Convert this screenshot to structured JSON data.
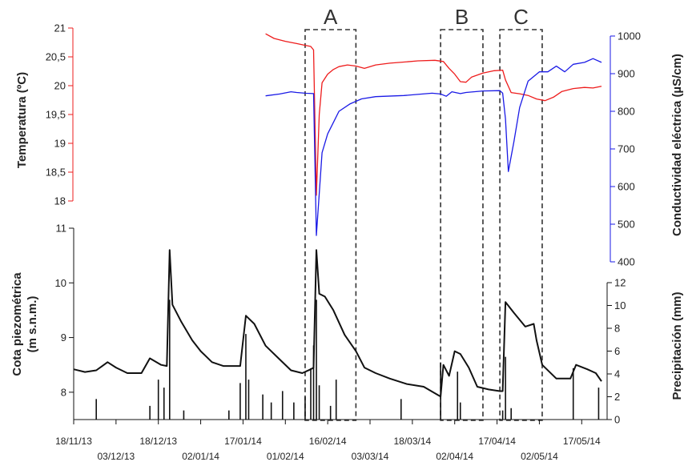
{
  "chart_data": {
    "type": "line",
    "colors": {
      "temperature": "#ee1c1c",
      "conductivity": "#1a1ae6",
      "piezometric": "#111111",
      "precipitation": "#111111",
      "boxes": "#333333"
    },
    "axes": {
      "temperature": {
        "label": "Temperatura (ºC)",
        "range": [
          18,
          21
        ],
        "ticks": [
          "18",
          "18,5",
          "19",
          "19,5",
          "20",
          "20,5",
          "21"
        ],
        "color": "#ee1c1c"
      },
      "conductivity": {
        "label": "Conductividad eléctrica (µS/cm)",
        "range": [
          400,
          1000
        ],
        "ticks": [
          "400",
          "500",
          "600",
          "700",
          "800",
          "900",
          "1000"
        ],
        "color": "#1a1ae6"
      },
      "piezometric": {
        "label_line1": "Cota piezométrica",
        "label_line2": "(m s.n.m.)",
        "range": [
          7.5,
          11
        ],
        "ticks": [
          "8",
          "9",
          "10",
          "11"
        ]
      },
      "precipitation": {
        "label": "Precipitación (mm)",
        "range": [
          0,
          12
        ],
        "ticks": [
          "0",
          "2",
          "4",
          "6",
          "8",
          "10",
          "12"
        ]
      },
      "x": {
        "range": [
          "2013-11-18",
          "2014-05-26"
        ],
        "ticks": [
          {
            "label": "18/11/13",
            "date": "2013-11-18",
            "row": 0
          },
          {
            "label": "03/12/13",
            "date": "2013-12-03",
            "row": 1
          },
          {
            "label": "18/12/13",
            "date": "2013-12-18",
            "row": 0
          },
          {
            "label": "02/01/14",
            "date": "2014-01-02",
            "row": 1
          },
          {
            "label": "17/01/14",
            "date": "2014-01-17",
            "row": 0
          },
          {
            "label": "01/02/14",
            "date": "2014-02-01",
            "row": 1
          },
          {
            "label": "16/02/14",
            "date": "2014-02-16",
            "row": 0
          },
          {
            "label": "03/03/14",
            "date": "2014-03-03",
            "row": 1
          },
          {
            "label": "18/03/14",
            "date": "2014-03-18",
            "row": 0
          },
          {
            "label": "02/04/14",
            "date": "2014-04-02",
            "row": 1
          },
          {
            "label": "17/04/14",
            "date": "2014-04-17",
            "row": 0
          },
          {
            "label": "02/05/14",
            "date": "2014-05-02",
            "row": 1
          },
          {
            "label": "17/05/14",
            "date": "2014-05-17",
            "row": 0
          }
        ]
      }
    },
    "boxes": [
      {
        "label": "A",
        "start": "2014-02-08",
        "end": "2014-02-26"
      },
      {
        "label": "B",
        "start": "2014-03-28",
        "end": "2014-04-12"
      },
      {
        "label": "C",
        "start": "2014-04-18",
        "end": "2014-05-03"
      }
    ],
    "series": [
      {
        "key": "temperature",
        "axis": "temperature",
        "points": [
          [
            "2014-01-25",
            20.9
          ],
          [
            "2014-01-28",
            20.82
          ],
          [
            "2014-02-01",
            20.77
          ],
          [
            "2014-02-05",
            20.73
          ],
          [
            "2014-02-08",
            20.7
          ],
          [
            "2014-02-10",
            20.68
          ],
          [
            "2014-02-11",
            20.62
          ],
          [
            "2014-02-12",
            18.1
          ],
          [
            "2014-02-13",
            19.5
          ],
          [
            "2014-02-14",
            20.05
          ],
          [
            "2014-02-16",
            20.2
          ],
          [
            "2014-02-18",
            20.28
          ],
          [
            "2014-02-20",
            20.33
          ],
          [
            "2014-02-23",
            20.36
          ],
          [
            "2014-02-26",
            20.34
          ],
          [
            "2014-03-01",
            20.3
          ],
          [
            "2014-03-05",
            20.36
          ],
          [
            "2014-03-10",
            20.39
          ],
          [
            "2014-03-15",
            20.41
          ],
          [
            "2014-03-20",
            20.43
          ],
          [
            "2014-03-26",
            20.44
          ],
          [
            "2014-03-29",
            20.42
          ],
          [
            "2014-03-31",
            20.3
          ],
          [
            "2014-04-02",
            20.2
          ],
          [
            "2014-04-04",
            20.07
          ],
          [
            "2014-04-06",
            20.06
          ],
          [
            "2014-04-08",
            20.15
          ],
          [
            "2014-04-12",
            20.22
          ],
          [
            "2014-04-16",
            20.26
          ],
          [
            "2014-04-19",
            20.27
          ],
          [
            "2014-04-20",
            20.1
          ],
          [
            "2014-04-22",
            19.88
          ],
          [
            "2014-04-25",
            19.86
          ],
          [
            "2014-04-28",
            19.83
          ],
          [
            "2014-05-01",
            19.77
          ],
          [
            "2014-05-04",
            19.74
          ],
          [
            "2014-05-07",
            19.8
          ],
          [
            "2014-05-10",
            19.9
          ],
          [
            "2014-05-14",
            19.95
          ],
          [
            "2014-05-18",
            19.97
          ],
          [
            "2014-05-21",
            19.96
          ],
          [
            "2014-05-24",
            19.99
          ]
        ]
      },
      {
        "key": "conductivity",
        "axis": "conductivity",
        "points": [
          [
            "2014-01-25",
            841
          ],
          [
            "2014-01-30",
            846
          ],
          [
            "2014-02-03",
            852
          ],
          [
            "2014-02-05",
            850
          ],
          [
            "2014-02-08",
            848
          ],
          [
            "2014-02-11",
            847
          ],
          [
            "2014-02-12",
            470
          ],
          [
            "2014-02-14",
            690
          ],
          [
            "2014-02-16",
            740
          ],
          [
            "2014-02-18",
            770
          ],
          [
            "2014-02-20",
            800
          ],
          [
            "2014-02-24",
            820
          ],
          [
            "2014-02-28",
            833
          ],
          [
            "2014-03-05",
            839
          ],
          [
            "2014-03-15",
            842
          ],
          [
            "2014-03-25",
            848
          ],
          [
            "2014-03-28",
            846
          ],
          [
            "2014-03-30",
            840
          ],
          [
            "2014-04-01",
            852
          ],
          [
            "2014-04-04",
            847
          ],
          [
            "2014-04-06",
            850
          ],
          [
            "2014-04-12",
            854
          ],
          [
            "2014-04-18",
            855
          ],
          [
            "2014-04-19",
            848
          ],
          [
            "2014-04-20",
            780
          ],
          [
            "2014-04-21",
            640
          ],
          [
            "2014-04-23",
            720
          ],
          [
            "2014-04-25",
            810
          ],
          [
            "2014-04-28",
            880
          ],
          [
            "2014-05-02",
            905
          ],
          [
            "2014-05-05",
            905
          ],
          [
            "2014-05-08",
            920
          ],
          [
            "2014-05-11",
            905
          ],
          [
            "2014-05-14",
            925
          ],
          [
            "2014-05-18",
            930
          ],
          [
            "2014-05-21",
            940
          ],
          [
            "2014-05-24",
            930
          ]
        ]
      },
      {
        "key": "piezometric",
        "axis": "piezometric",
        "points": [
          [
            "2013-11-18",
            8.42
          ],
          [
            "2013-11-22",
            8.37
          ],
          [
            "2013-11-26",
            8.4
          ],
          [
            "2013-11-30",
            8.55
          ],
          [
            "2013-12-03",
            8.45
          ],
          [
            "2013-12-07",
            8.35
          ],
          [
            "2013-12-12",
            8.35
          ],
          [
            "2013-12-15",
            8.62
          ],
          [
            "2013-12-19",
            8.5
          ],
          [
            "2013-12-21",
            8.48
          ],
          [
            "2013-12-22",
            10.6
          ],
          [
            "2013-12-23",
            9.6
          ],
          [
            "2013-12-26",
            9.3
          ],
          [
            "2013-12-30",
            8.95
          ],
          [
            "2014-01-02",
            8.75
          ],
          [
            "2014-01-06",
            8.55
          ],
          [
            "2014-01-10",
            8.48
          ],
          [
            "2014-01-16",
            8.48
          ],
          [
            "2014-01-18",
            9.4
          ],
          [
            "2014-01-21",
            9.25
          ],
          [
            "2014-01-25",
            8.85
          ],
          [
            "2014-01-30",
            8.6
          ],
          [
            "2014-02-03",
            8.4
          ],
          [
            "2014-02-07",
            8.35
          ],
          [
            "2014-02-10",
            8.42
          ],
          [
            "2014-02-11",
            8.45
          ],
          [
            "2014-02-12",
            10.6
          ],
          [
            "2014-02-13",
            9.8
          ],
          [
            "2014-02-15",
            9.75
          ],
          [
            "2014-02-18",
            9.5
          ],
          [
            "2014-02-22",
            9.05
          ],
          [
            "2014-02-26",
            8.75
          ],
          [
            "2014-03-01",
            8.45
          ],
          [
            "2014-03-05",
            8.35
          ],
          [
            "2014-03-10",
            8.25
          ],
          [
            "2014-03-16",
            8.15
          ],
          [
            "2014-03-22",
            8.1
          ],
          [
            "2014-03-27",
            7.95
          ],
          [
            "2014-03-28",
            7.92
          ],
          [
            "2014-03-29",
            8.5
          ],
          [
            "2014-03-31",
            8.3
          ],
          [
            "2014-04-02",
            8.75
          ],
          [
            "2014-04-04",
            8.7
          ],
          [
            "2014-04-07",
            8.45
          ],
          [
            "2014-04-10",
            8.1
          ],
          [
            "2014-04-14",
            8.05
          ],
          [
            "2014-04-18",
            8.02
          ],
          [
            "2014-04-19",
            8.02
          ],
          [
            "2014-04-20",
            9.65
          ],
          [
            "2014-04-23",
            9.45
          ],
          [
            "2014-04-27",
            9.2
          ],
          [
            "2014-04-30",
            9.25
          ],
          [
            "2014-05-01",
            8.95
          ],
          [
            "2014-05-03",
            8.5
          ],
          [
            "2014-05-08",
            8.25
          ],
          [
            "2014-05-13",
            8.25
          ],
          [
            "2014-05-15",
            8.5
          ],
          [
            "2014-05-19",
            8.42
          ],
          [
            "2014-05-22",
            8.35
          ],
          [
            "2014-05-24",
            8.2
          ]
        ]
      },
      {
        "key": "precipitation",
        "axis": "precipitation",
        "type": "bar",
        "points": [
          [
            "2013-11-26",
            1.8
          ],
          [
            "2013-12-15",
            1.2
          ],
          [
            "2013-12-18",
            3.5
          ],
          [
            "2013-12-20",
            2.8
          ],
          [
            "2013-12-22",
            10.5
          ],
          [
            "2013-12-27",
            0.8
          ],
          [
            "2014-01-12",
            0.8
          ],
          [
            "2014-01-16",
            3.2
          ],
          [
            "2014-01-18",
            7.5
          ],
          [
            "2014-01-19",
            3.5
          ],
          [
            "2014-01-24",
            2.2
          ],
          [
            "2014-01-27",
            1.5
          ],
          [
            "2014-01-31",
            2.5
          ],
          [
            "2014-02-04",
            1.5
          ],
          [
            "2014-02-08",
            2.0
          ],
          [
            "2014-02-10",
            4.5
          ],
          [
            "2014-02-11",
            6.5
          ],
          [
            "2014-02-12",
            10.5
          ],
          [
            "2014-02-13",
            3.0
          ],
          [
            "2014-02-17",
            1.2
          ],
          [
            "2014-02-19",
            3.5
          ],
          [
            "2014-03-14",
            1.8
          ],
          [
            "2014-03-28",
            5.0
          ],
          [
            "2014-04-03",
            4.2
          ],
          [
            "2014-04-04",
            1.5
          ],
          [
            "2014-04-19",
            0.8
          ],
          [
            "2014-04-20",
            5.5
          ],
          [
            "2014-04-22",
            1.0
          ],
          [
            "2014-05-14",
            4.5
          ],
          [
            "2014-05-23",
            2.8
          ]
        ]
      }
    ]
  }
}
